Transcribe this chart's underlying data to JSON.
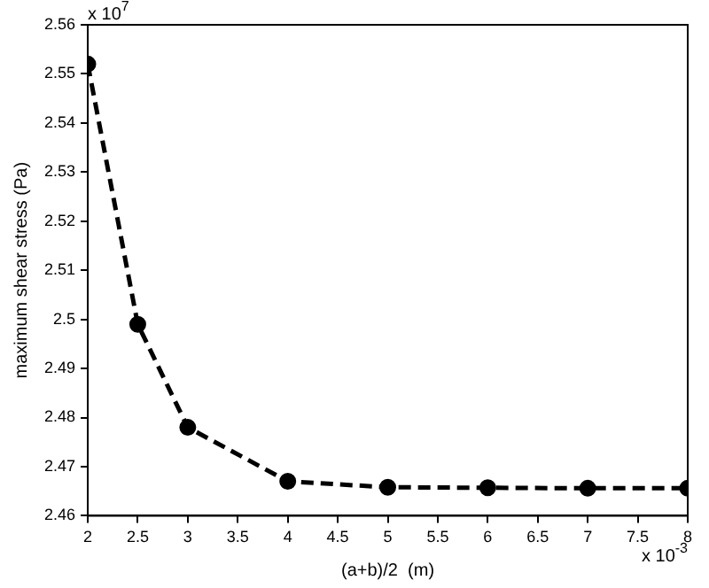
{
  "chart_data": {
    "type": "line",
    "xlabel": "(a+b)/2  (m)",
    "ylabel": "maximum shear stress (Pa)",
    "annotations": [
      "x 10$^{7}$",
      "x 10$^{-3}$"
    ],
    "x": [
      2,
      2.5,
      3,
      4,
      5,
      6,
      7,
      8
    ],
    "series": [
      {
        "color": "#000000",
        "values": [
          2.552,
          2.499,
          2.478,
          2.467,
          2.4658,
          2.4657,
          2.4656,
          2.4656
        ]
      }
    ],
    "xlim": [
      2,
      8
    ],
    "xticks": [
      2,
      2.5,
      3,
      3.5,
      4,
      4.5,
      5,
      5.5,
      6,
      6.5,
      7,
      7.5,
      8
    ],
    "ylim": [
      2.46,
      2.56
    ],
    "yticks": [
      2.46,
      2.47,
      2.48,
      2.49,
      2.5,
      2.51,
      2.52,
      2.53,
      2.54,
      2.55,
      2.56
    ],
    "grid": false,
    "legend": false,
    "marker": "circle",
    "line_style": "dashed"
  }
}
